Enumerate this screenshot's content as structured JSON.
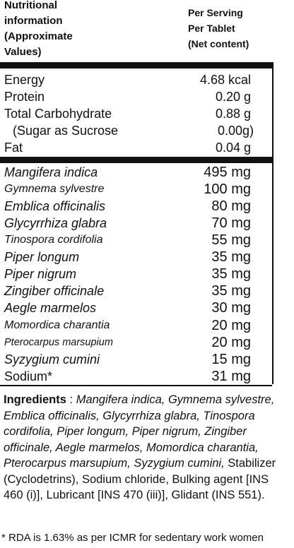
{
  "header": {
    "left_lines": [
      "Nutritional",
      "information",
      "(Approximate",
      "Values)"
    ],
    "right_lines": [
      "Per Serving",
      "Per Tablet",
      "(Net content)"
    ]
  },
  "nutrients": [
    {
      "label": "Energy",
      "value": "4.68 kcal"
    },
    {
      "label": "Protein",
      "value": "0.20 g"
    },
    {
      "label": "Total Carbohydrate",
      "value": "0.88 g"
    },
    {
      "label": "(Sugar as Sucrose",
      "value": "0.00g)"
    },
    {
      "label": "Fat",
      "value": "0.04 g"
    }
  ],
  "herbs": [
    {
      "label": "Mangifera indica",
      "value": "495 mg"
    },
    {
      "label": "Gymnema sylvestre",
      "value": "100 mg"
    },
    {
      "label": "Emblica officinalis",
      "value": "80 mg"
    },
    {
      "label": "Glycyrrhiza glabra",
      "value": "70 mg"
    },
    {
      "label": "Tinospora cordifolia",
      "value": "55 mg"
    },
    {
      "label": "Piper longum",
      "value": "35 mg"
    },
    {
      "label": "Piper nigrum",
      "value": "35 mg"
    },
    {
      "label": "Zingiber officinale",
      "value": "35 mg"
    },
    {
      "label": "Aegle marmelos",
      "value": "30 mg"
    },
    {
      "label": "Momordica charantia",
      "value": "20 mg"
    },
    {
      "label": "Pterocarpus marsupium",
      "value": "20 mg"
    },
    {
      "label": "Syzygium cumini",
      "value": "15 mg"
    },
    {
      "label": "Sodium*",
      "value": "31 mg"
    }
  ],
  "ingredients": {
    "title": "Ingredients",
    "separator": " :  ",
    "botanical_list": "Mangifera indica, Gymnema sylvestre, Emblica officinalis, Glycyrrhiza glabra, Tinospora cordifolia, Piper longum, Piper nigrum, Zingiber officinale, Aegle marmelos, Momordica charantia, Pterocarpus marsupium, Syzygium cumini,",
    "other_list": " Stabilizer (Cyclodetrins), Sodium chloride, Bulking agent [INS 460 (i)], Lubricant [INS 470 (iii)], Glidant (INS 551)."
  },
  "footnote": "* RDA is 1.63% as per ICMR for sedentary work women"
}
